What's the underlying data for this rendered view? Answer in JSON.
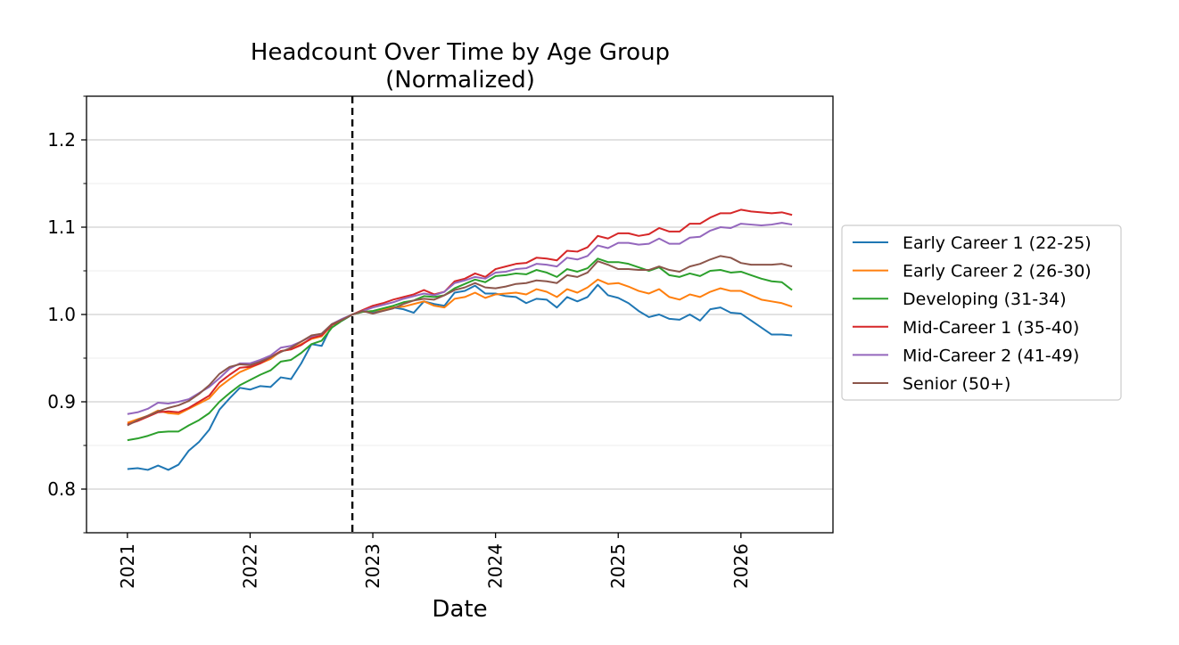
{
  "chart_data": {
    "type": "line",
    "title_lines": [
      "Headcount Over Time by Age Group",
      "(Normalized)"
    ],
    "xlabel": "Date",
    "ylabel": "",
    "x_ticks": [
      "2021",
      "2022",
      "2023",
      "2024",
      "2025",
      "2026"
    ],
    "y_ticks": [
      "0.8",
      "0.9",
      "1.0",
      "1.1",
      "1.2"
    ],
    "ylim": [
      0.75,
      1.25
    ],
    "xlim": [
      "2020-09-01",
      "2026-10-01"
    ],
    "grid": "horizontal",
    "legend_position": "right",
    "reference_line": {
      "x": "2022-11-01",
      "style": "dashed"
    },
    "x": [
      "2021-01",
      "2021-02",
      "2021-03",
      "2021-04",
      "2021-05",
      "2021-06",
      "2021-07",
      "2021-08",
      "2021-09",
      "2021-10",
      "2021-11",
      "2021-12",
      "2022-01",
      "2022-02",
      "2022-03",
      "2022-04",
      "2022-05",
      "2022-06",
      "2022-07",
      "2022-08",
      "2022-09",
      "2022-10",
      "2022-11",
      "2022-12",
      "2023-01",
      "2023-02",
      "2023-03",
      "2023-04",
      "2023-05",
      "2023-06",
      "2023-07",
      "2023-08",
      "2023-09",
      "2023-10",
      "2023-11",
      "2023-12",
      "2024-01",
      "2024-02",
      "2024-03",
      "2024-04",
      "2024-05",
      "2024-06",
      "2024-07",
      "2024-08",
      "2024-09",
      "2024-10",
      "2024-11",
      "2024-12",
      "2025-01",
      "2025-02",
      "2025-03",
      "2025-04",
      "2025-05",
      "2025-06",
      "2025-07",
      "2025-08",
      "2025-09",
      "2025-10",
      "2025-11",
      "2025-12",
      "2026-01",
      "2026-02",
      "2026-03",
      "2026-04",
      "2026-05",
      "2026-06"
    ],
    "series": [
      {
        "name": "Early Career 1 (22-25)",
        "color": "#1f77b4",
        "values": [
          0.823,
          0.824,
          0.822,
          0.827,
          0.822,
          0.828,
          0.844,
          0.854,
          0.868,
          0.891,
          0.904,
          0.916,
          0.914,
          0.918,
          0.917,
          0.928,
          0.926,
          0.944,
          0.966,
          0.964,
          0.988,
          0.993,
          1.0,
          1.003,
          1.003,
          1.005,
          1.008,
          1.006,
          1.002,
          1.015,
          1.012,
          1.01,
          1.025,
          1.027,
          1.033,
          1.024,
          1.024,
          1.021,
          1.02,
          1.013,
          1.018,
          1.017,
          1.008,
          1.02,
          1.015,
          1.02,
          1.034,
          1.022,
          1.019,
          1.013,
          1.004,
          0.997,
          1.0,
          0.995,
          0.994,
          1.0,
          0.993,
          1.006,
          1.008,
          1.002,
          1.001,
          0.993,
          0.985,
          0.977,
          0.977,
          0.976
        ]
      },
      {
        "name": "Early Career 2 (26-30)",
        "color": "#ff7f0e",
        "values": [
          0.876,
          0.88,
          0.884,
          0.89,
          0.887,
          0.886,
          0.892,
          0.898,
          0.904,
          0.917,
          0.926,
          0.934,
          0.939,
          0.944,
          0.949,
          0.958,
          0.96,
          0.966,
          0.972,
          0.975,
          0.988,
          0.994,
          1.0,
          1.003,
          1.004,
          1.006,
          1.008,
          1.009,
          1.012,
          1.015,
          1.01,
          1.008,
          1.018,
          1.02,
          1.025,
          1.019,
          1.023,
          1.024,
          1.025,
          1.023,
          1.029,
          1.026,
          1.02,
          1.029,
          1.025,
          1.031,
          1.04,
          1.035,
          1.036,
          1.032,
          1.027,
          1.024,
          1.029,
          1.02,
          1.017,
          1.023,
          1.02,
          1.026,
          1.03,
          1.027,
          1.027,
          1.022,
          1.017,
          1.015,
          1.013,
          1.009
        ]
      },
      {
        "name": "Developing (31-34)",
        "color": "#2ca02c",
        "values": [
          0.856,
          0.858,
          0.861,
          0.865,
          0.866,
          0.866,
          0.873,
          0.879,
          0.887,
          0.9,
          0.91,
          0.919,
          0.925,
          0.931,
          0.936,
          0.946,
          0.948,
          0.956,
          0.966,
          0.97,
          0.985,
          0.993,
          1.0,
          1.003,
          1.004,
          1.007,
          1.01,
          1.014,
          1.016,
          1.021,
          1.02,
          1.022,
          1.03,
          1.035,
          1.04,
          1.037,
          1.044,
          1.045,
          1.047,
          1.046,
          1.051,
          1.048,
          1.043,
          1.052,
          1.049,
          1.053,
          1.064,
          1.06,
          1.06,
          1.058,
          1.054,
          1.05,
          1.054,
          1.045,
          1.043,
          1.047,
          1.044,
          1.05,
          1.051,
          1.048,
          1.049,
          1.045,
          1.041,
          1.038,
          1.037,
          1.028
        ]
      },
      {
        "name": "Mid-Career 1 (35-40)",
        "color": "#d62728",
        "values": [
          0.874,
          0.878,
          0.883,
          0.888,
          0.889,
          0.888,
          0.893,
          0.9,
          0.907,
          0.922,
          0.931,
          0.939,
          0.94,
          0.944,
          0.951,
          0.958,
          0.96,
          0.965,
          0.973,
          0.976,
          0.988,
          0.994,
          1.0,
          1.005,
          1.01,
          1.013,
          1.017,
          1.02,
          1.023,
          1.028,
          1.023,
          1.026,
          1.038,
          1.041,
          1.047,
          1.043,
          1.052,
          1.055,
          1.058,
          1.059,
          1.065,
          1.064,
          1.062,
          1.073,
          1.072,
          1.077,
          1.09,
          1.087,
          1.093,
          1.093,
          1.09,
          1.092,
          1.099,
          1.095,
          1.095,
          1.104,
          1.104,
          1.111,
          1.116,
          1.116,
          1.12,
          1.118,
          1.117,
          1.116,
          1.117,
          1.114
        ]
      },
      {
        "name": "Mid-Career 2 (41-49)",
        "color": "#9467bd",
        "values": [
          0.886,
          0.888,
          0.892,
          0.899,
          0.898,
          0.9,
          0.903,
          0.91,
          0.917,
          0.927,
          0.938,
          0.944,
          0.944,
          0.948,
          0.953,
          0.962,
          0.964,
          0.969,
          0.975,
          0.978,
          0.989,
          0.995,
          1.0,
          1.004,
          1.008,
          1.011,
          1.014,
          1.018,
          1.021,
          1.024,
          1.022,
          1.026,
          1.036,
          1.039,
          1.043,
          1.041,
          1.048,
          1.049,
          1.052,
          1.053,
          1.058,
          1.057,
          1.055,
          1.065,
          1.063,
          1.067,
          1.079,
          1.076,
          1.082,
          1.082,
          1.08,
          1.081,
          1.087,
          1.081,
          1.081,
          1.088,
          1.089,
          1.096,
          1.1,
          1.099,
          1.104,
          1.103,
          1.102,
          1.103,
          1.105,
          1.103
        ]
      },
      {
        "name": "Senior (50+)",
        "color": "#8c564b",
        "values": [
          0.873,
          0.879,
          0.884,
          0.889,
          0.893,
          0.896,
          0.901,
          0.909,
          0.919,
          0.932,
          0.94,
          0.943,
          0.942,
          0.946,
          0.951,
          0.957,
          0.962,
          0.969,
          0.976,
          0.978,
          0.989,
          0.994,
          1.0,
          1.004,
          1.001,
          1.004,
          1.007,
          1.012,
          1.016,
          1.018,
          1.017,
          1.022,
          1.028,
          1.031,
          1.036,
          1.031,
          1.03,
          1.032,
          1.035,
          1.036,
          1.039,
          1.038,
          1.036,
          1.045,
          1.043,
          1.048,
          1.061,
          1.057,
          1.052,
          1.052,
          1.051,
          1.051,
          1.055,
          1.051,
          1.049,
          1.055,
          1.058,
          1.063,
          1.067,
          1.065,
          1.059,
          1.057,
          1.057,
          1.057,
          1.058,
          1.055
        ]
      }
    ]
  }
}
